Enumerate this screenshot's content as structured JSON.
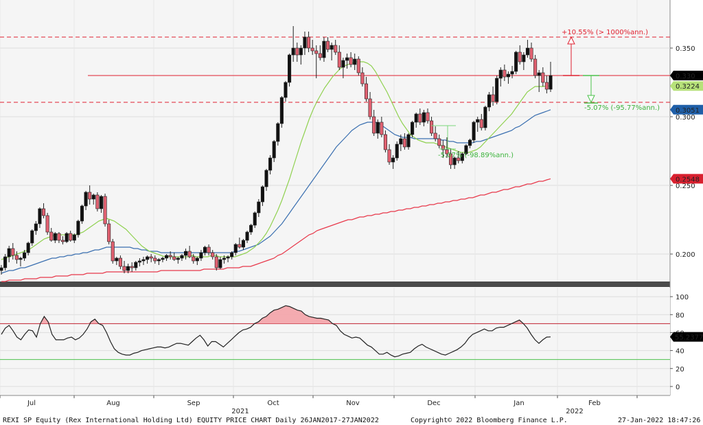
{
  "chart_data": {
    "type": "candlestick",
    "footer": {
      "left": "REXI SP Equity (Rex International Holding Ltd) EQUITY PRICE CHART  Daily 26JAN2017-27JAN2022",
      "center": "Copyright© 2022 Bloomberg Finance L.P.",
      "right": "27-Jan-2022 18:47:26"
    },
    "x_axis": {
      "months": [
        "Jul",
        "Aug",
        "Sep",
        "Oct",
        "Nov",
        "Dec",
        "Jan",
        "Feb"
      ],
      "years": [
        "2021",
        "2022"
      ]
    },
    "price_axis": {
      "ylim": [
        0.18,
        0.385
      ],
      "ticks": [
        "0.350",
        "0.300",
        "0.250",
        "0.200"
      ]
    },
    "rsi_axis": {
      "ylim": [
        -10,
        110
      ],
      "ticks": [
        "100",
        "80",
        "60",
        "40",
        "20",
        "0"
      ],
      "upper": 70,
      "lower": 30
    },
    "last_price": {
      "value": "0.330",
      "color": "#000000"
    },
    "price_tags": [
      {
        "value": "0.3224",
        "color": "#b7e27a",
        "text_color": "#000000"
      },
      {
        "value": "0.3051",
        "color": "#1f5fa8",
        "text_color": "#ffffff"
      },
      {
        "value": "0.2548",
        "color": "#d9202f",
        "text_color": "#ffffff"
      }
    ],
    "rsi_tag": {
      "value": "55.2377"
    },
    "annotations": {
      "up": "+10.55% (> 1000%ann.)",
      "down": "-5.07% (-95.77%ann.)",
      "mid": "-5.07% (-98.89%ann.)"
    },
    "levels": {
      "upper_dashed": 0.358,
      "middle_solid": 0.33,
      "lower_dashed": 0.3105
    },
    "candles": [
      [
        0.188,
        0.192,
        0.185,
        0.19
      ],
      [
        0.19,
        0.2,
        0.188,
        0.198
      ],
      [
        0.198,
        0.206,
        0.194,
        0.204
      ],
      [
        0.204,
        0.208,
        0.196,
        0.199
      ],
      [
        0.199,
        0.202,
        0.193,
        0.196
      ],
      [
        0.196,
        0.198,
        0.191,
        0.197
      ],
      [
        0.197,
        0.203,
        0.195,
        0.201
      ],
      [
        0.201,
        0.209,
        0.199,
        0.208
      ],
      [
        0.208,
        0.218,
        0.206,
        0.217
      ],
      [
        0.217,
        0.224,
        0.214,
        0.222
      ],
      [
        0.222,
        0.234,
        0.219,
        0.233
      ],
      [
        0.233,
        0.237,
        0.226,
        0.228
      ],
      [
        0.228,
        0.23,
        0.214,
        0.216
      ],
      [
        0.216,
        0.219,
        0.209,
        0.21
      ],
      [
        0.21,
        0.216,
        0.208,
        0.215
      ],
      [
        0.215,
        0.216,
        0.208,
        0.21
      ],
      [
        0.21,
        0.213,
        0.207,
        0.209
      ],
      [
        0.209,
        0.216,
        0.208,
        0.215
      ],
      [
        0.215,
        0.217,
        0.209,
        0.21
      ],
      [
        0.21,
        0.215,
        0.208,
        0.214
      ],
      [
        0.214,
        0.225,
        0.212,
        0.224
      ],
      [
        0.224,
        0.236,
        0.222,
        0.235
      ],
      [
        0.235,
        0.246,
        0.232,
        0.245
      ],
      [
        0.245,
        0.25,
        0.236,
        0.24
      ],
      [
        0.24,
        0.244,
        0.236,
        0.243
      ],
      [
        0.243,
        0.245,
        0.231,
        0.233
      ],
      [
        0.233,
        0.243,
        0.23,
        0.242
      ],
      [
        0.242,
        0.244,
        0.22,
        0.222
      ],
      [
        0.222,
        0.225,
        0.207,
        0.209
      ],
      [
        0.209,
        0.211,
        0.193,
        0.195
      ],
      [
        0.195,
        0.198,
        0.192,
        0.197
      ],
      [
        0.197,
        0.199,
        0.189,
        0.191
      ],
      [
        0.191,
        0.195,
        0.186,
        0.188
      ],
      [
        0.188,
        0.193,
        0.186,
        0.191
      ],
      [
        0.191,
        0.194,
        0.187,
        0.19
      ],
      [
        0.19,
        0.195,
        0.188,
        0.194
      ],
      [
        0.194,
        0.197,
        0.191,
        0.195
      ],
      [
        0.195,
        0.198,
        0.192,
        0.196
      ],
      [
        0.196,
        0.199,
        0.193,
        0.198
      ],
      [
        0.198,
        0.2,
        0.194,
        0.197
      ],
      [
        0.197,
        0.199,
        0.193,
        0.195
      ],
      [
        0.195,
        0.197,
        0.192,
        0.196
      ],
      [
        0.196,
        0.198,
        0.194,
        0.197
      ],
      [
        0.197,
        0.2,
        0.195,
        0.199
      ],
      [
        0.199,
        0.202,
        0.196,
        0.198
      ],
      [
        0.198,
        0.201,
        0.195,
        0.196
      ],
      [
        0.196,
        0.198,
        0.193,
        0.197
      ],
      [
        0.197,
        0.2,
        0.195,
        0.199
      ],
      [
        0.199,
        0.204,
        0.196,
        0.202
      ],
      [
        0.202,
        0.206,
        0.197,
        0.198
      ],
      [
        0.198,
        0.2,
        0.193,
        0.195
      ],
      [
        0.195,
        0.198,
        0.192,
        0.197
      ],
      [
        0.197,
        0.203,
        0.195,
        0.201
      ],
      [
        0.201,
        0.206,
        0.199,
        0.205
      ],
      [
        0.205,
        0.207,
        0.199,
        0.201
      ],
      [
        0.201,
        0.203,
        0.196,
        0.198
      ],
      [
        0.198,
        0.2,
        0.188,
        0.19
      ],
      [
        0.19,
        0.198,
        0.189,
        0.196
      ],
      [
        0.196,
        0.199,
        0.193,
        0.197
      ],
      [
        0.197,
        0.199,
        0.194,
        0.198
      ],
      [
        0.198,
        0.202,
        0.196,
        0.201
      ],
      [
        0.201,
        0.208,
        0.199,
        0.207
      ],
      [
        0.207,
        0.212,
        0.204,
        0.205
      ],
      [
        0.205,
        0.211,
        0.203,
        0.21
      ],
      [
        0.21,
        0.217,
        0.208,
        0.216
      ],
      [
        0.216,
        0.222,
        0.214,
        0.221
      ],
      [
        0.221,
        0.231,
        0.219,
        0.23
      ],
      [
        0.23,
        0.24,
        0.227,
        0.238
      ],
      [
        0.238,
        0.25,
        0.235,
        0.249
      ],
      [
        0.249,
        0.262,
        0.246,
        0.261
      ],
      [
        0.261,
        0.272,
        0.258,
        0.27
      ],
      [
        0.27,
        0.283,
        0.267,
        0.282
      ],
      [
        0.282,
        0.296,
        0.279,
        0.295
      ],
      [
        0.295,
        0.315,
        0.292,
        0.314
      ],
      [
        0.314,
        0.326,
        0.311,
        0.325
      ],
      [
        0.325,
        0.346,
        0.322,
        0.345
      ],
      [
        0.345,
        0.366,
        0.34,
        0.35
      ],
      [
        0.35,
        0.354,
        0.34,
        0.345
      ],
      [
        0.345,
        0.352,
        0.338,
        0.35
      ],
      [
        0.35,
        0.362,
        0.345,
        0.358
      ],
      [
        0.358,
        0.362,
        0.347,
        0.35
      ],
      [
        0.35,
        0.356,
        0.345,
        0.348
      ],
      [
        0.348,
        0.352,
        0.328,
        0.346
      ],
      [
        0.346,
        0.352,
        0.341,
        0.343
      ],
      [
        0.343,
        0.358,
        0.34,
        0.355
      ],
      [
        0.355,
        0.358,
        0.347,
        0.349
      ],
      [
        0.349,
        0.354,
        0.341,
        0.352
      ],
      [
        0.352,
        0.356,
        0.345,
        0.347
      ],
      [
        0.347,
        0.352,
        0.334,
        0.336
      ],
      [
        0.336,
        0.343,
        0.328,
        0.341
      ],
      [
        0.341,
        0.346,
        0.335,
        0.343
      ],
      [
        0.343,
        0.347,
        0.336,
        0.338
      ],
      [
        0.338,
        0.346,
        0.334,
        0.342
      ],
      [
        0.342,
        0.344,
        0.33,
        0.332
      ],
      [
        0.332,
        0.336,
        0.322,
        0.324
      ],
      [
        0.324,
        0.329,
        0.311,
        0.313
      ],
      [
        0.313,
        0.318,
        0.298,
        0.3
      ],
      [
        0.3,
        0.305,
        0.286,
        0.288
      ],
      [
        0.288,
        0.298,
        0.284,
        0.296
      ],
      [
        0.296,
        0.3,
        0.285,
        0.287
      ],
      [
        0.287,
        0.29,
        0.274,
        0.276
      ],
      [
        0.276,
        0.28,
        0.265,
        0.267
      ],
      [
        0.267,
        0.272,
        0.262,
        0.27
      ],
      [
        0.27,
        0.282,
        0.268,
        0.28
      ],
      [
        0.28,
        0.287,
        0.275,
        0.284
      ],
      [
        0.284,
        0.288,
        0.276,
        0.278
      ],
      [
        0.278,
        0.288,
        0.276,
        0.287
      ],
      [
        0.287,
        0.297,
        0.285,
        0.296
      ],
      [
        0.296,
        0.303,
        0.292,
        0.302
      ],
      [
        0.302,
        0.306,
        0.294,
        0.296
      ],
      [
        0.296,
        0.305,
        0.293,
        0.303
      ],
      [
        0.303,
        0.306,
        0.295,
        0.297
      ],
      [
        0.297,
        0.3,
        0.286,
        0.288
      ],
      [
        0.288,
        0.293,
        0.282,
        0.284
      ],
      [
        0.284,
        0.287,
        0.277,
        0.279
      ],
      [
        0.279,
        0.283,
        0.27,
        0.276
      ],
      [
        0.276,
        0.285,
        0.27,
        0.273
      ],
      [
        0.273,
        0.277,
        0.262,
        0.265
      ],
      [
        0.265,
        0.271,
        0.262,
        0.27
      ],
      [
        0.27,
        0.275,
        0.266,
        0.268
      ],
      [
        0.268,
        0.274,
        0.266,
        0.273
      ],
      [
        0.273,
        0.28,
        0.272,
        0.279
      ],
      [
        0.279,
        0.284,
        0.277,
        0.283
      ],
      [
        0.283,
        0.297,
        0.281,
        0.296
      ],
      [
        0.296,
        0.3,
        0.289,
        0.298
      ],
      [
        0.298,
        0.302,
        0.29,
        0.292
      ],
      [
        0.292,
        0.308,
        0.29,
        0.307
      ],
      [
        0.307,
        0.318,
        0.304,
        0.316
      ],
      [
        0.316,
        0.322,
        0.308,
        0.311
      ],
      [
        0.311,
        0.33,
        0.309,
        0.328
      ],
      [
        0.328,
        0.336,
        0.322,
        0.334
      ],
      [
        0.334,
        0.338,
        0.326,
        0.329
      ],
      [
        0.329,
        0.333,
        0.324,
        0.331
      ],
      [
        0.331,
        0.337,
        0.328,
        0.333
      ],
      [
        0.333,
        0.348,
        0.331,
        0.347
      ],
      [
        0.347,
        0.352,
        0.338,
        0.34
      ],
      [
        0.34,
        0.347,
        0.334,
        0.345
      ],
      [
        0.345,
        0.356,
        0.343,
        0.35
      ],
      [
        0.35,
        0.354,
        0.34,
        0.342
      ],
      [
        0.342,
        0.345,
        0.328,
        0.33
      ],
      [
        0.33,
        0.334,
        0.318,
        0.332
      ],
      [
        0.332,
        0.336,
        0.322,
        0.325
      ],
      [
        0.325,
        0.33,
        0.317,
        0.32
      ],
      [
        0.32,
        0.34,
        0.318,
        0.33
      ]
    ],
    "ma_green": [
      0.196,
      0.197,
      0.198,
      0.199,
      0.2,
      0.201,
      0.202,
      0.203,
      0.205,
      0.207,
      0.209,
      0.211,
      0.212,
      0.213,
      0.214,
      0.214,
      0.214,
      0.214,
      0.214,
      0.214,
      0.215,
      0.216,
      0.218,
      0.22,
      0.222,
      0.224,
      0.225,
      0.226,
      0.225,
      0.224,
      0.222,
      0.22,
      0.218,
      0.215,
      0.212,
      0.209,
      0.206,
      0.204,
      0.202,
      0.201,
      0.2,
      0.199,
      0.198,
      0.198,
      0.198,
      0.198,
      0.198,
      0.198,
      0.198,
      0.199,
      0.198,
      0.198,
      0.198,
      0.198,
      0.199,
      0.199,
      0.198,
      0.198,
      0.198,
      0.198,
      0.198,
      0.199,
      0.2,
      0.201,
      0.203,
      0.205,
      0.208,
      0.211,
      0.215,
      0.22,
      0.226,
      0.232,
      0.239,
      0.247,
      0.255,
      0.264,
      0.273,
      0.282,
      0.29,
      0.298,
      0.305,
      0.311,
      0.316,
      0.321,
      0.325,
      0.329,
      0.332,
      0.335,
      0.337,
      0.338,
      0.339,
      0.34,
      0.34,
      0.34,
      0.339,
      0.337,
      0.333,
      0.328,
      0.323,
      0.318,
      0.312,
      0.306,
      0.3,
      0.295,
      0.291,
      0.287,
      0.285,
      0.283,
      0.282,
      0.281,
      0.281,
      0.281,
      0.28,
      0.279,
      0.278,
      0.277,
      0.276,
      0.275,
      0.274,
      0.274,
      0.274,
      0.275,
      0.276,
      0.278,
      0.281,
      0.284,
      0.287,
      0.29,
      0.293,
      0.296,
      0.299,
      0.302,
      0.306,
      0.31,
      0.314,
      0.318,
      0.32,
      0.322,
      0.322,
      0.322,
      0.3224,
      0.3224
    ],
    "ma_blue": [
      0.186,
      0.187,
      0.188,
      0.188,
      0.189,
      0.19,
      0.19,
      0.191,
      0.192,
      0.193,
      0.194,
      0.195,
      0.196,
      0.197,
      0.197,
      0.198,
      0.198,
      0.199,
      0.199,
      0.2,
      0.2,
      0.201,
      0.201,
      0.202,
      0.203,
      0.203,
      0.204,
      0.205,
      0.205,
      0.205,
      0.205,
      0.205,
      0.205,
      0.205,
      0.204,
      0.204,
      0.203,
      0.203,
      0.202,
      0.202,
      0.202,
      0.201,
      0.201,
      0.201,
      0.201,
      0.201,
      0.201,
      0.201,
      0.201,
      0.201,
      0.201,
      0.201,
      0.201,
      0.201,
      0.201,
      0.201,
      0.201,
      0.201,
      0.201,
      0.201,
      0.202,
      0.202,
      0.203,
      0.204,
      0.205,
      0.206,
      0.207,
      0.209,
      0.211,
      0.213,
      0.216,
      0.219,
      0.222,
      0.226,
      0.23,
      0.234,
      0.238,
      0.242,
      0.246,
      0.25,
      0.254,
      0.258,
      0.262,
      0.266,
      0.27,
      0.274,
      0.278,
      0.281,
      0.284,
      0.287,
      0.29,
      0.292,
      0.294,
      0.295,
      0.296,
      0.296,
      0.296,
      0.295,
      0.293,
      0.291,
      0.289,
      0.287,
      0.286,
      0.285,
      0.285,
      0.285,
      0.284,
      0.284,
      0.284,
      0.284,
      0.284,
      0.284,
      0.284,
      0.283,
      0.283,
      0.282,
      0.282,
      0.281,
      0.281,
      0.281,
      0.281,
      0.281,
      0.282,
      0.282,
      0.283,
      0.284,
      0.285,
      0.286,
      0.287,
      0.288,
      0.289,
      0.29,
      0.292,
      0.293,
      0.295,
      0.297,
      0.299,
      0.301,
      0.302,
      0.303,
      0.304,
      0.3051
    ],
    "ma_red": [
      0.18,
      0.18,
      0.181,
      0.181,
      0.181,
      0.181,
      0.182,
      0.182,
      0.182,
      0.182,
      0.183,
      0.183,
      0.183,
      0.183,
      0.184,
      0.184,
      0.184,
      0.184,
      0.185,
      0.185,
      0.185,
      0.185,
      0.186,
      0.186,
      0.186,
      0.186,
      0.186,
      0.187,
      0.187,
      0.187,
      0.187,
      0.187,
      0.187,
      0.187,
      0.187,
      0.187,
      0.187,
      0.187,
      0.187,
      0.187,
      0.187,
      0.188,
      0.188,
      0.188,
      0.188,
      0.188,
      0.188,
      0.188,
      0.188,
      0.188,
      0.188,
      0.188,
      0.189,
      0.189,
      0.189,
      0.189,
      0.189,
      0.189,
      0.19,
      0.19,
      0.19,
      0.19,
      0.191,
      0.191,
      0.191,
      0.192,
      0.193,
      0.194,
      0.195,
      0.196,
      0.197,
      0.199,
      0.2,
      0.202,
      0.204,
      0.206,
      0.208,
      0.21,
      0.212,
      0.214,
      0.215,
      0.217,
      0.218,
      0.219,
      0.22,
      0.221,
      0.222,
      0.223,
      0.224,
      0.225,
      0.225,
      0.226,
      0.227,
      0.227,
      0.228,
      0.228,
      0.229,
      0.229,
      0.23,
      0.23,
      0.231,
      0.231,
      0.232,
      0.232,
      0.233,
      0.233,
      0.234,
      0.234,
      0.235,
      0.235,
      0.236,
      0.236,
      0.237,
      0.237,
      0.238,
      0.238,
      0.239,
      0.239,
      0.24,
      0.24,
      0.241,
      0.241,
      0.242,
      0.243,
      0.243,
      0.244,
      0.245,
      0.245,
      0.246,
      0.247,
      0.247,
      0.248,
      0.249,
      0.249,
      0.25,
      0.251,
      0.251,
      0.252,
      0.253,
      0.253,
      0.254,
      0.2548
    ],
    "rsi": [
      58,
      65,
      68,
      62,
      55,
      52,
      58,
      63,
      62,
      55,
      70,
      78,
      72,
      58,
      52,
      52,
      52,
      54,
      55,
      52,
      54,
      58,
      64,
      72,
      75,
      70,
      68,
      60,
      50,
      42,
      38,
      36,
      35,
      35,
      37,
      38,
      40,
      41,
      42,
      43,
      44,
      44,
      43,
      44,
      46,
      48,
      48,
      47,
      46,
      50,
      54,
      57,
      52,
      45,
      50,
      50,
      47,
      44,
      48,
      52,
      56,
      60,
      63,
      64,
      66,
      70,
      72,
      76,
      78,
      82,
      85,
      86,
      88,
      90,
      89,
      87,
      85,
      84,
      80,
      78,
      77,
      76,
      76,
      75,
      74,
      70,
      68,
      62,
      58,
      56,
      54,
      55,
      54,
      50,
      46,
      44,
      40,
      36,
      36,
      38,
      35,
      33,
      34,
      36,
      37,
      38,
      42,
      45,
      47,
      44,
      42,
      40,
      38,
      36,
      35,
      37,
      39,
      41,
      44,
      48,
      54,
      58,
      60,
      62,
      64,
      62,
      62,
      65,
      66,
      66,
      68,
      70,
      72,
      74,
      70,
      65,
      58,
      52,
      48,
      52,
      55,
      55.2
    ]
  }
}
